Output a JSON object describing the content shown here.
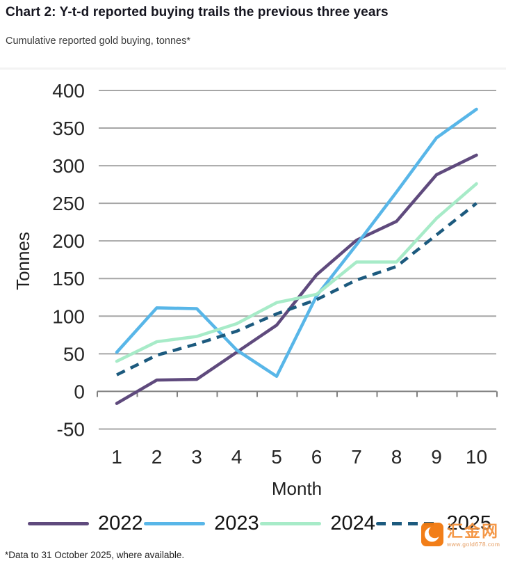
{
  "header": {
    "title": "Chart 2: Y-t-d reported buying trails the previous three years",
    "subtitle": "Cumulative reported gold buying, tonnes*"
  },
  "chart_data": {
    "type": "line",
    "xlabel": "Month",
    "ylabel": "Tonnes",
    "x": [
      1,
      2,
      3,
      4,
      5,
      6,
      7,
      8,
      9,
      10
    ],
    "ylim": [
      -50,
      400
    ],
    "yticks": [
      400,
      350,
      300,
      250,
      200,
      150,
      100,
      50,
      0,
      -50
    ],
    "grid": "horizontal",
    "legend_position": "bottom",
    "gridline_color": "#a6a6a6",
    "axis_color": "#808080",
    "tick_label_color": "#262626",
    "series": [
      {
        "name": "2022",
        "color": "#5f4a7d",
        "style": "solid",
        "values": [
          -16,
          15,
          16,
          52,
          88,
          155,
          201,
          226,
          288,
          314
        ]
      },
      {
        "name": "2023",
        "color": "#58b6e8",
        "style": "solid",
        "values": [
          52,
          111,
          110,
          55,
          20,
          127,
          195,
          265,
          337,
          375
        ]
      },
      {
        "name": "2024",
        "color": "#a7ebc8",
        "style": "solid",
        "values": [
          40,
          66,
          73,
          90,
          118,
          129,
          172,
          172,
          230,
          276
        ]
      },
      {
        "name": "2025",
        "color": "#1c5a7e",
        "style": "dashed",
        "values": [
          22,
          48,
          63,
          80,
          103,
          122,
          148,
          166,
          208,
          250
        ]
      }
    ]
  },
  "footnote": "*Data to 31 October 2025, where available.",
  "watermark": {
    "brand": "汇金网",
    "url": "www.gold678.com",
    "accent_color": "#f2780c"
  }
}
